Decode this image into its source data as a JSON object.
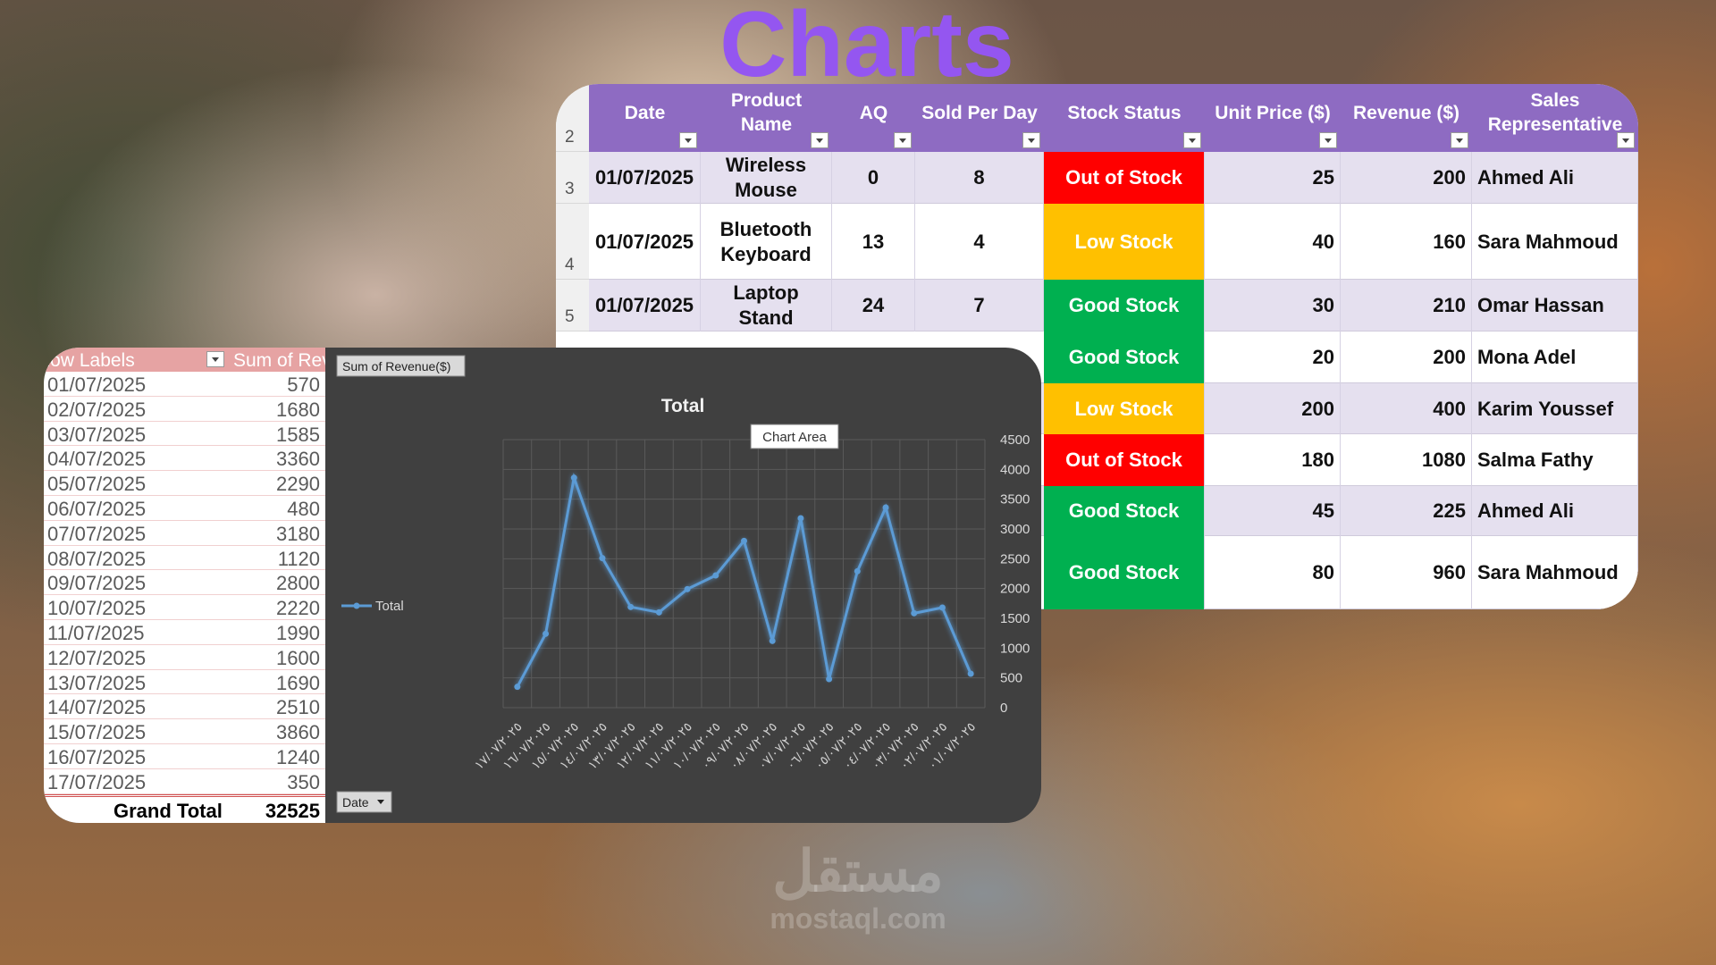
{
  "title": "Charts",
  "table": {
    "header_row_number": 2,
    "columns": [
      "Date",
      "Product Name",
      "AQ",
      "Sold Per Day",
      "Stock Status",
      "Unit Price ($)",
      "Revenue ($)",
      "Sales Representative"
    ],
    "rows": [
      {
        "row_number": 3,
        "date": "01/07/2025",
        "product": "Wireless Mouse",
        "aq": 0,
        "sold_per_day": 8,
        "stock_status": "Out of Stock",
        "status_color": "#ff0000",
        "unit_price": 25,
        "revenue": 200,
        "sales_rep": "Ahmed Ali"
      },
      {
        "row_number": 4,
        "date": "01/07/2025",
        "product": "Bluetooth Keyboard",
        "aq": 13,
        "sold_per_day": 4,
        "stock_status": "Low Stock",
        "status_color": "#ffc000",
        "unit_price": 40,
        "revenue": 160,
        "sales_rep": "Sara Mahmoud"
      },
      {
        "row_number": 5,
        "date": "01/07/2025",
        "product": "Laptop Stand",
        "aq": 24,
        "sold_per_day": 7,
        "stock_status": "Good Stock",
        "status_color": "#00b050",
        "unit_price": 30,
        "revenue": 210,
        "sales_rep": "Omar Hassan"
      },
      {
        "stock_status": "Good Stock",
        "status_color": "#00b050",
        "unit_price": 20,
        "revenue": 200,
        "sales_rep": "Mona Adel"
      },
      {
        "stock_status": "Low Stock",
        "status_color": "#ffc000",
        "unit_price": 200,
        "revenue": 400,
        "sales_rep": "Karim Youssef"
      },
      {
        "stock_status": "Out of Stock",
        "status_color": "#ff0000",
        "unit_price": 180,
        "revenue": 1080,
        "sales_rep": "Salma Fathy"
      },
      {
        "stock_status": "Good Stock",
        "status_color": "#00b050",
        "unit_price": 45,
        "revenue": 225,
        "sales_rep": "Ahmed Ali"
      },
      {
        "stock_status": "Good Stock",
        "status_color": "#00b050",
        "unit_price": 80,
        "revenue": 960,
        "sales_rep": "Sara Mahmoud"
      }
    ]
  },
  "pivot": {
    "headers": [
      "Row Labels",
      "Sum of Revenue($)"
    ],
    "rows": [
      [
        "01/07/2025",
        570
      ],
      [
        "02/07/2025",
        1680
      ],
      [
        "03/07/2025",
        1585
      ],
      [
        "04/07/2025",
        3360
      ],
      [
        "05/07/2025",
        2290
      ],
      [
        "06/07/2025",
        480
      ],
      [
        "07/07/2025",
        3180
      ],
      [
        "08/07/2025",
        1120
      ],
      [
        "09/07/2025",
        2800
      ],
      [
        "10/07/2025",
        2220
      ],
      [
        "11/07/2025",
        1990
      ],
      [
        "12/07/2025",
        1600
      ],
      [
        "13/07/2025",
        1690
      ],
      [
        "14/07/2025",
        2510
      ],
      [
        "15/07/2025",
        3860
      ],
      [
        "16/07/2025",
        1240
      ],
      [
        "17/07/2025",
        350
      ]
    ],
    "grand_total_label": "Grand Total",
    "grand_total": 32525
  },
  "chart_data": {
    "type": "line",
    "title": "Total",
    "value_field_button": "Sum of Revenue($)",
    "axis_field_button": "Date",
    "tooltip": "Chart Area",
    "categories": [
      "١٧/٠٧/٢٠٢٥",
      "١٦/٠٧/٢٠٢٥",
      "١٥/٠٧/٢٠٢٥",
      "١٤/٠٧/٢٠٢٥",
      "١٣/٠٧/٢٠٢٥",
      "١٢/٠٧/٢٠٢٥",
      "١١/٠٧/٢٠٢٥",
      "١٠/٠٧/٢٠٢٥",
      "٠٩/٠٧/٢٠٢٥",
      "٠٨/٠٧/٢٠٢٥",
      "٠٧/٠٧/٢٠٢٥",
      "٠٦/٠٧/٢٠٢٥",
      "٠٥/٠٧/٢٠٢٥",
      "٠٤/٠٧/٢٠٢٥",
      "٠٣/٠٧/٢٠٢٥",
      "٠٢/٠٧/٢٠٢٥",
      "٠١/٠٧/٢٠٢٥"
    ],
    "series": [
      {
        "name": "Total",
        "color": "#5b9bd5",
        "values": [
          350,
          1240,
          3860,
          2510,
          1690,
          1600,
          1990,
          2220,
          2800,
          1120,
          3180,
          480,
          2290,
          3360,
          1585,
          1680,
          570
        ]
      }
    ],
    "ylim": [
      0,
      4500
    ],
    "yticks": [
      0,
      500,
      1000,
      1500,
      2000,
      2500,
      3000,
      3500,
      4000,
      4500
    ],
    "grid": true,
    "legend": "left"
  },
  "watermark": {
    "arabic": "مستقل",
    "latin": "mostaql.com"
  }
}
